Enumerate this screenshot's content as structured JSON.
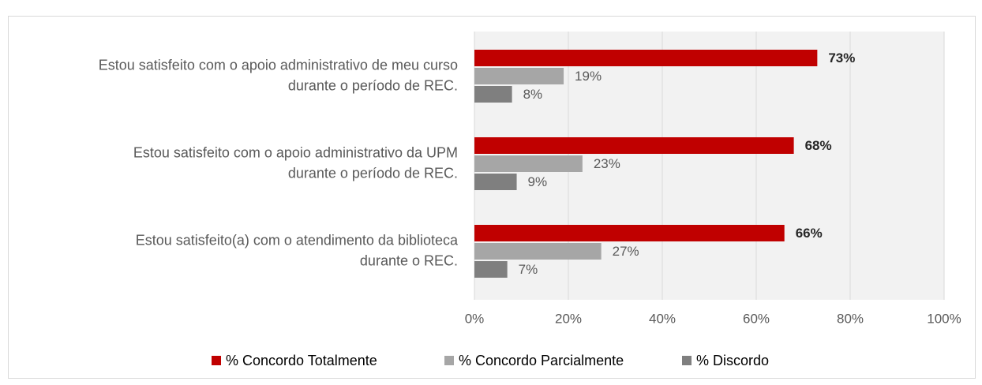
{
  "chart_data": {
    "type": "bar",
    "orientation": "horizontal",
    "categories": [
      [
        "Estou satisfeito com o apoio administrativo de meu curso",
        "durante o período de REC."
      ],
      [
        "Estou satisfeito com o apoio administrativo da UPM",
        "durante o período de REC."
      ],
      [
        "Estou satisfeito(a) com o atendimento da biblioteca",
        "durante o REC."
      ]
    ],
    "series": [
      {
        "name": "% Concordo Totalmente",
        "color": "#c00000",
        "values": [
          73,
          68,
          66
        ],
        "value_labels": [
          "73%",
          "68%",
          "66%"
        ]
      },
      {
        "name": "% Concordo Parcialmente",
        "color": "#a6a6a6",
        "values": [
          19,
          23,
          27
        ],
        "value_labels": [
          "19%",
          "23%",
          "27%"
        ]
      },
      {
        "name": "% Discordo",
        "color": "#7f7f7f",
        "values": [
          8,
          9,
          7
        ],
        "value_labels": [
          "8%",
          "9%",
          "7%"
        ]
      }
    ],
    "xlim": [
      0,
      100
    ],
    "xticks": [
      {
        "value": 0,
        "label": "0%"
      },
      {
        "value": 20,
        "label": "20%"
      },
      {
        "value": 40,
        "label": "40%"
      },
      {
        "value": 60,
        "label": "60%"
      },
      {
        "value": 80,
        "label": "80%"
      },
      {
        "value": 100,
        "label": "100%"
      }
    ],
    "grid": true,
    "legend": "bottom"
  }
}
